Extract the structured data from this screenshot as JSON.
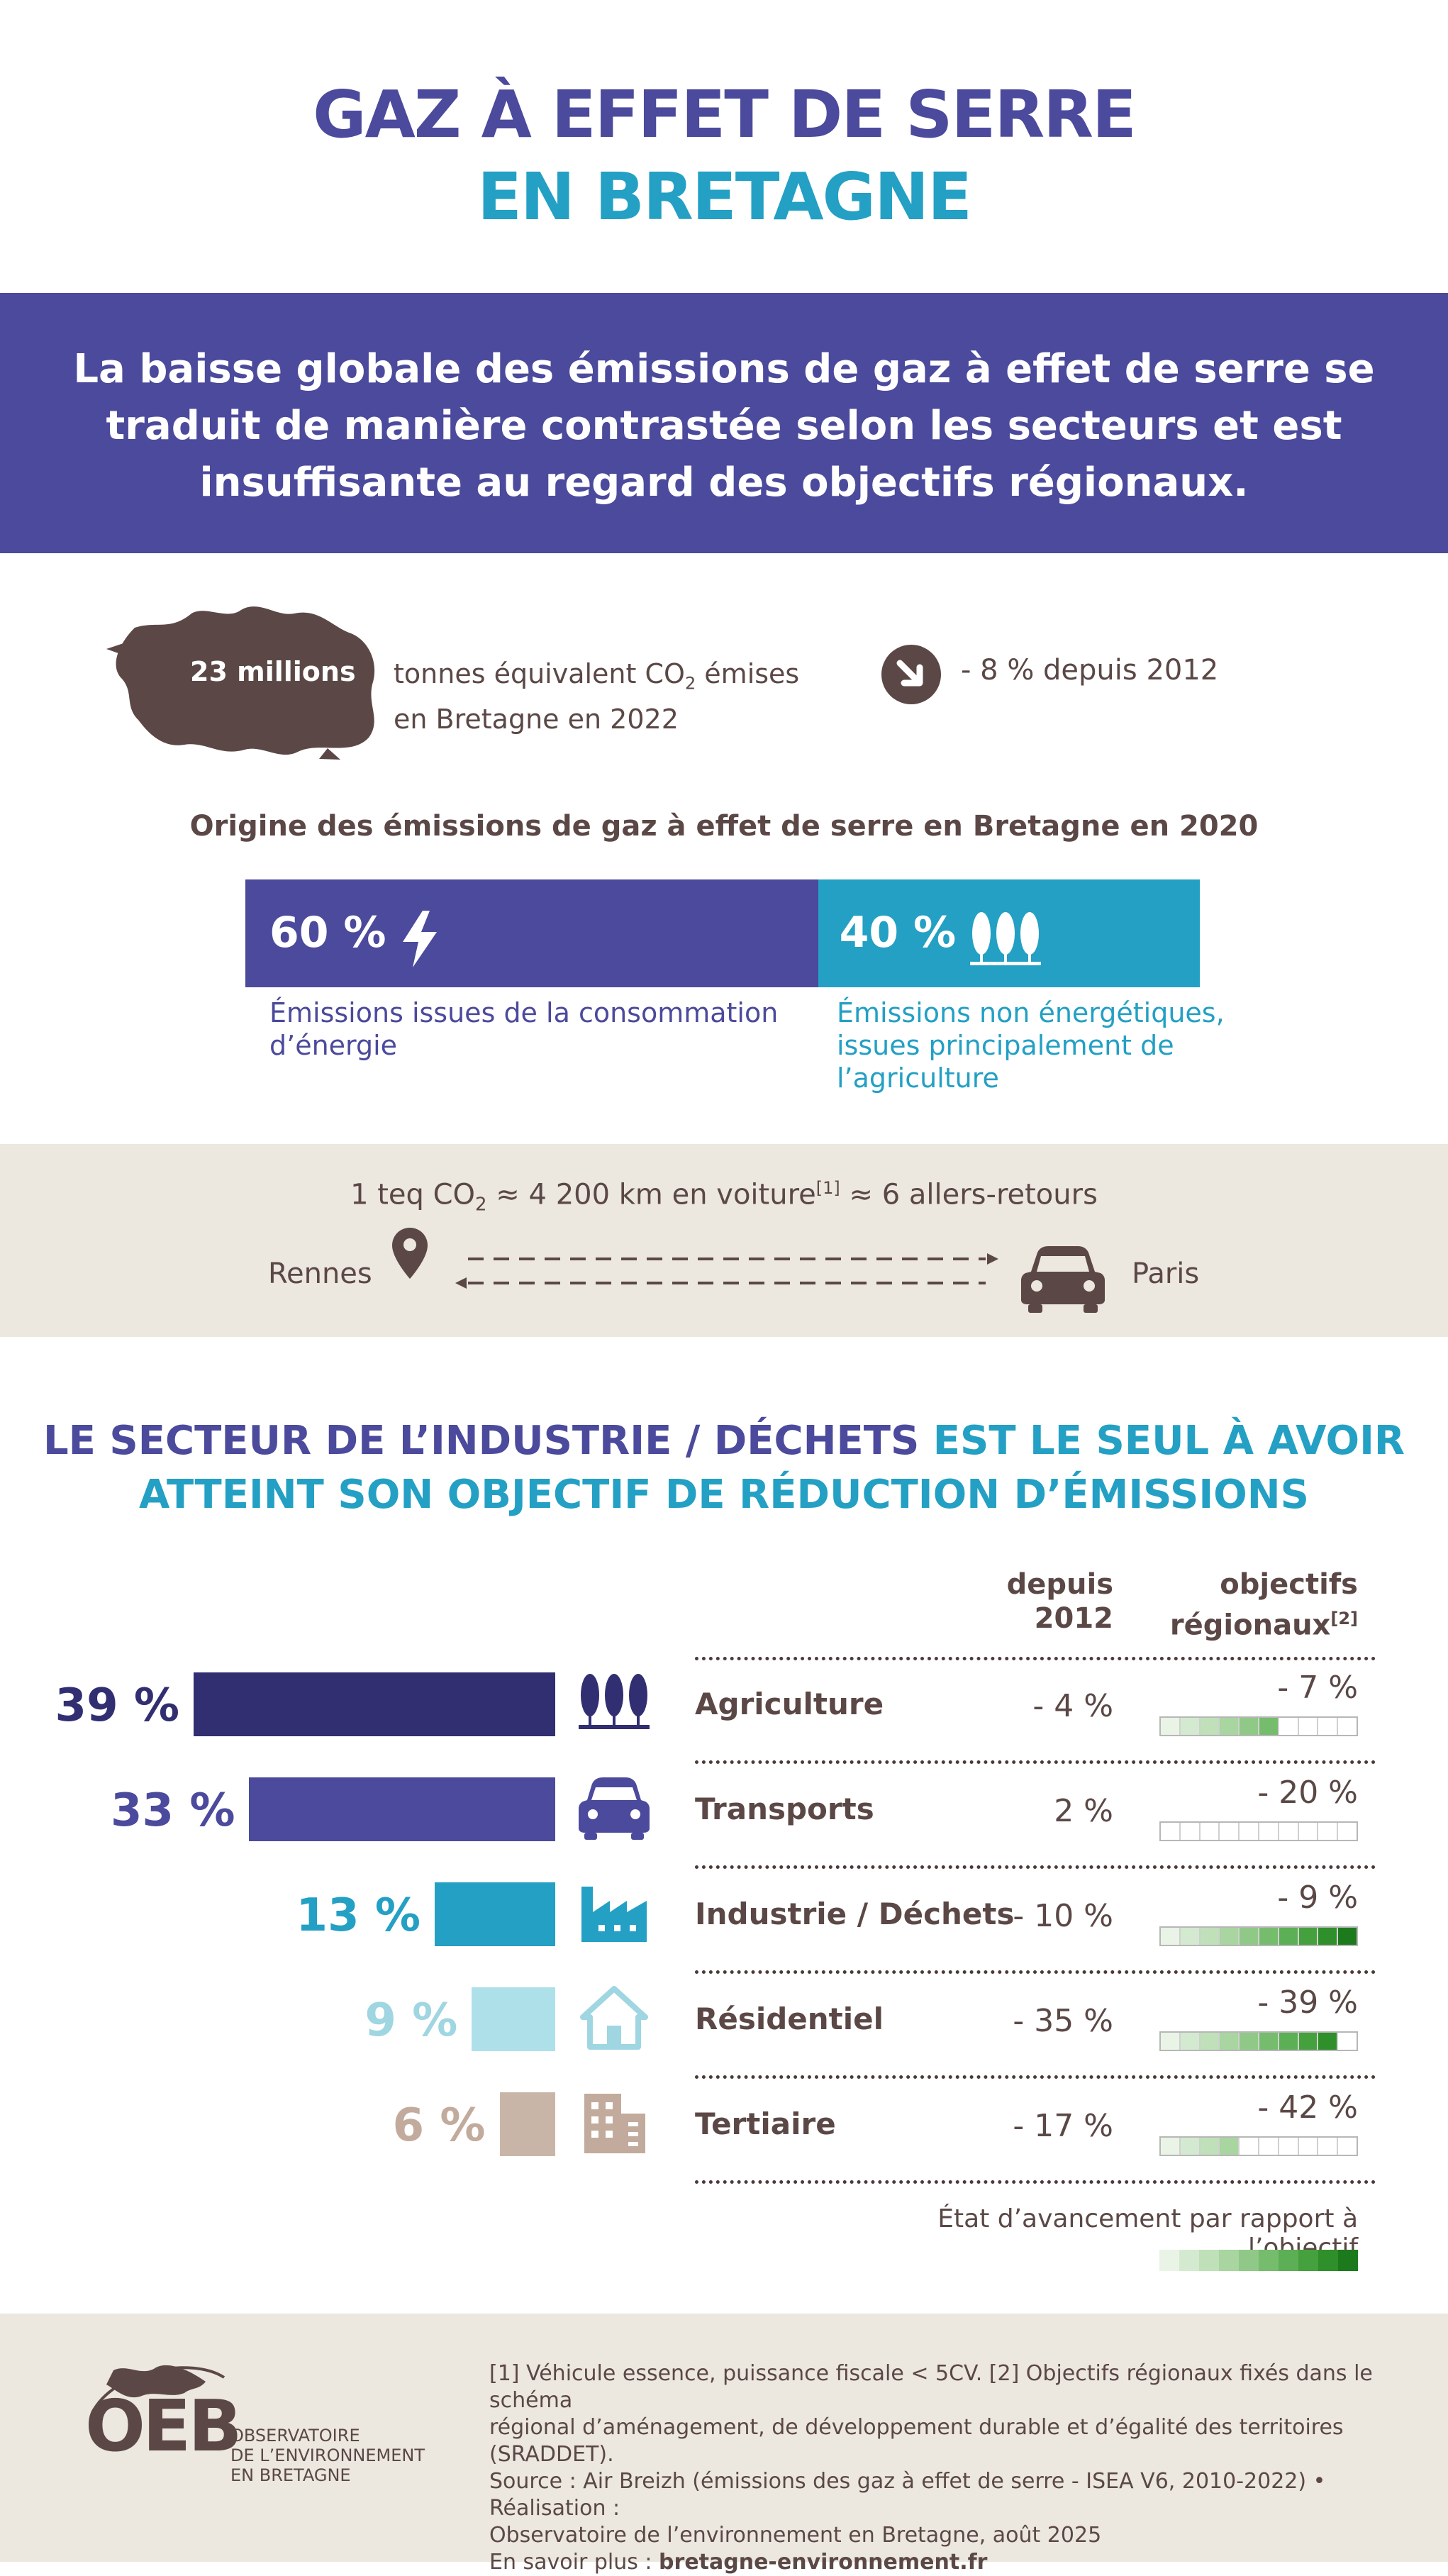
{
  "title": {
    "line1": "GAZ À EFFET DE SERRE",
    "line2": "EN BRETAGNE"
  },
  "banner": "La baisse globale des émissions de gaz à effet de serre se traduit de manière contrastée selon les secteurs et est insuffisante au regard des objectifs régionaux.",
  "headline": {
    "amount": "23 millions",
    "unit_pre": "tonnes équivalent CO",
    "unit_sub": "2",
    "unit_post": " émises",
    "unit_line2": "en Bretagne en 2022",
    "trend": "- 8 % depuis 2012"
  },
  "origin": {
    "title": "Origine des émissions de gaz à effet de serre en Bretagne en 2020",
    "energy_pct": "60 %",
    "energy_fraction": 0.6,
    "energy_desc": "Émissions issues de la consommation d’énergie",
    "non_energy_pct": "40 %",
    "non_energy_desc": "Émissions non énergétiques, issues principalement de l’agriculture"
  },
  "equivalence": {
    "pre": "1 teq CO",
    "sub": "2",
    "mid": " ≈ 4 200 km en voiture",
    "sup": "[1]",
    "post": " ≈ 6 allers-retours",
    "from": "Rennes",
    "to": "Paris"
  },
  "section": {
    "part1": "LE SECTEUR DE L’INDUSTRIE / DÉCHETS",
    "part2": " EST LE SEUL À AVOIR",
    "line2": "ATTEINT SON OBJECTIF DE RÉDUCTION D’ÉMISSIONS"
  },
  "columns": {
    "since_line1": "depuis",
    "since_line2": "2012",
    "obj_line1": "objectifs",
    "obj_line2": "régionaux",
    "obj_sup": "[2]"
  },
  "sectors": [
    {
      "share_label": "39 %",
      "share": 39,
      "name": "Agriculture",
      "since": "- 4 %",
      "objective": "- 7 %",
      "progress": 0.6,
      "color": "#312e72",
      "icon": "trees-icon"
    },
    {
      "share_label": "33 %",
      "share": 33,
      "name": "Transports",
      "since": "2 %",
      "objective": "- 20 %",
      "progress": 0,
      "color": "#4b4a9c",
      "icon": "car-icon"
    },
    {
      "share_label": "13 %",
      "share": 13,
      "name": "Industrie / Déchets",
      "since": "- 10 %",
      "objective": "- 9 %",
      "progress": 1,
      "color": "#23a0c4",
      "icon": "factory-icon"
    },
    {
      "share_label": "9 %",
      "share": 9,
      "name": "Résidentiel",
      "since": "- 35 %",
      "objective": "- 39 %",
      "progress": 0.9,
      "color": "#aee0ea",
      "icon": "house-icon"
    },
    {
      "share_label": "6 %",
      "share": 6,
      "name": "Tertiaire",
      "since": "- 17 %",
      "objective": "- 42 %",
      "progress": 0.4,
      "color": "#c9b5a8",
      "icon": "office-building-icon"
    }
  ],
  "legend": "État d’avancement par rapport à l’objectif",
  "footer": {
    "logo": "OEB",
    "logo_line1": "OBSERVATOIRE",
    "logo_line2": "DE L’ENVIRONNEMENT",
    "logo_line3": "EN BRETAGNE",
    "note1": "[1] Véhicule essence, puissance fiscale < 5CV. [2] Objectifs régionaux fixés dans le schéma",
    "note2": "régional d’aménagement, de développement durable et d’égalité des territoires (SRADDET).",
    "note3": "Source : Air Breizh (émissions des gaz à effet de serre - ISEA V6, 2010-2022) • Réalisation :",
    "note4": "Observatoire de l’environnement en Bretagne, août 2025",
    "more_label": "En savoir plus : ",
    "more_link": "bretagne-environnement.fr"
  }
}
